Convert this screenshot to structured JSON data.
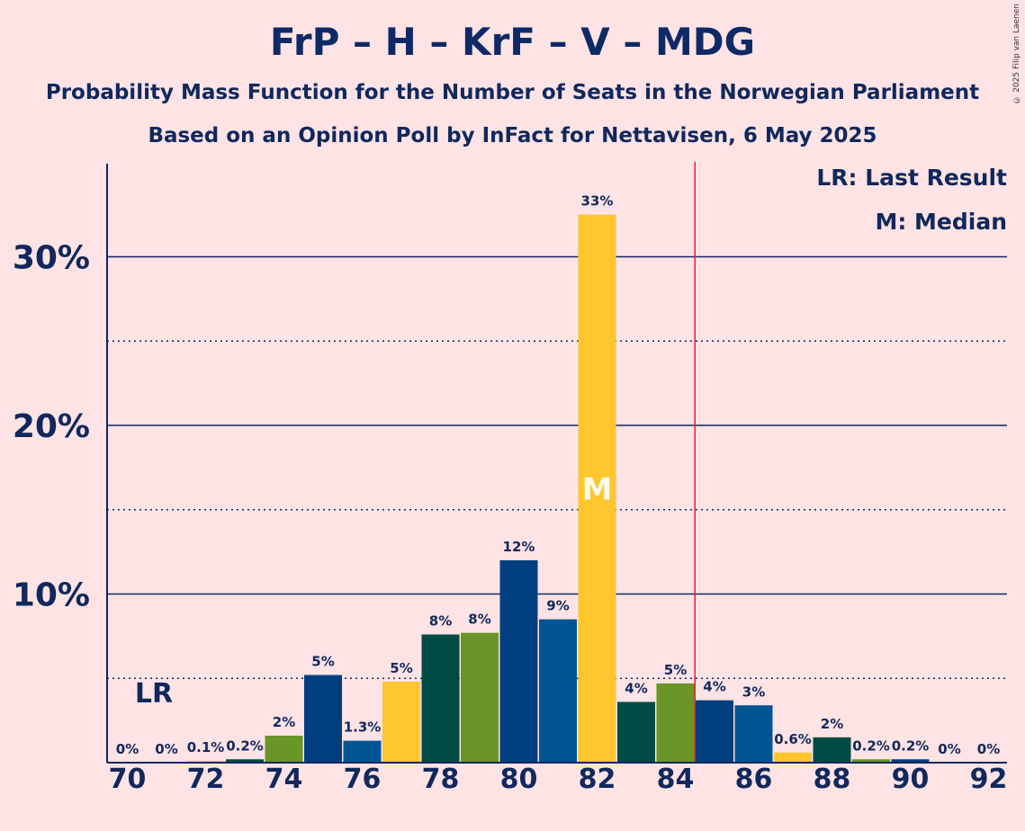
{
  "title": "FrP – H – KrF – V – MDG",
  "subtitle_line1": "Probability Mass Function for the Number of Seats in the Norwegian Parliament",
  "subtitle_line2": "Based on an Opinion Poll by InFact for Nettavisen, 6 May 2025",
  "copyright": "© 2025 Filip van Laenen",
  "legend": {
    "last_result": "LR: Last Result",
    "median": "M: Median"
  },
  "chart_data": {
    "type": "bar",
    "x": [
      70,
      71,
      72,
      73,
      74,
      75,
      76,
      77,
      78,
      79,
      80,
      81,
      82,
      83,
      84,
      85,
      86,
      87,
      88,
      89,
      90,
      91,
      92
    ],
    "values": [
      0,
      0,
      0.1,
      0.2,
      1.6,
      5.2,
      1.3,
      4.8,
      7.6,
      7.7,
      12.0,
      8.5,
      32.5,
      3.6,
      4.7,
      3.7,
      3.4,
      0.6,
      1.5,
      0.2,
      0.2,
      0,
      0
    ],
    "labels": [
      "0%",
      "0%",
      "0.1%",
      "0.2%",
      "2%",
      "5%",
      "1.3%",
      "5%",
      "8%",
      "8%",
      "12%",
      "9%",
      "33%",
      "4%",
      "5%",
      "4%",
      "3%",
      "0.6%",
      "2%",
      "0.2%",
      "0.2%",
      "0%",
      "0%"
    ],
    "colors": [
      "#003f7f",
      "#005494",
      "#ffc62e",
      "#004b43",
      "#6a9527",
      "#003f7f",
      "#005494",
      "#ffc62e",
      "#004b43",
      "#6a9527",
      "#003f7f",
      "#005494",
      "#ffc62e",
      "#004b43",
      "#6a9527",
      "#003f7f",
      "#005494",
      "#ffc62e",
      "#004b43",
      "#6a9527",
      "#003f7f",
      "#005494",
      "#ffc62e"
    ],
    "x_ticks": [
      "70",
      "72",
      "74",
      "76",
      "78",
      "80",
      "82",
      "84",
      "86",
      "88",
      "90",
      "92"
    ],
    "y_ticks": [
      {
        "value": 10,
        "label": "10%"
      },
      {
        "value": 20,
        "label": "20%"
      },
      {
        "value": 30,
        "label": "30%"
      }
    ],
    "dotted_lines": [
      5,
      15,
      25
    ],
    "ylim": [
      0,
      35.5
    ],
    "last_result_seat": 71,
    "last_result_label": "LR",
    "median_seat": 82,
    "median_label": "M",
    "majority_line_after_seat": 84,
    "majority_line_color": "#e8202a",
    "axis_color": "#10285c"
  }
}
